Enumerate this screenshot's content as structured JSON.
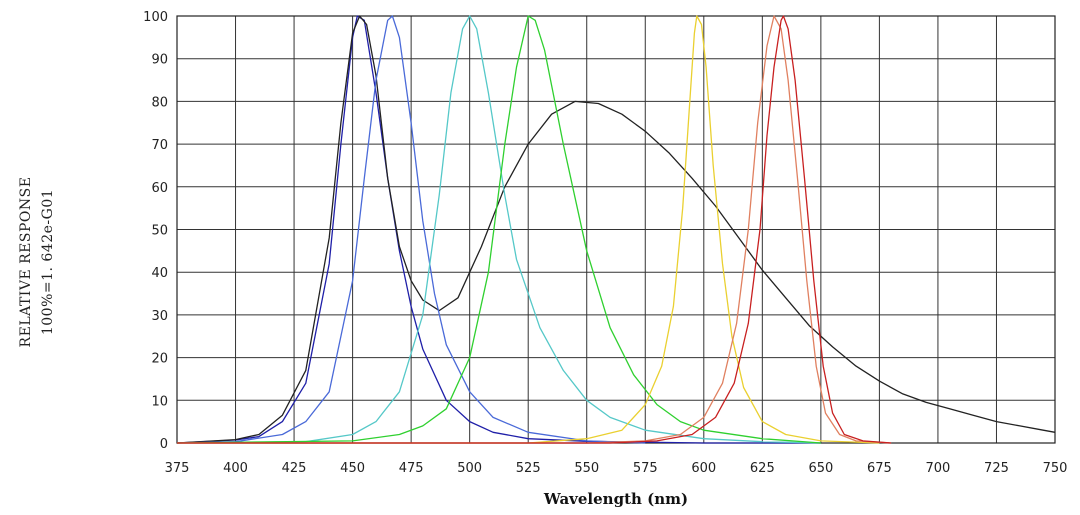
{
  "chart_data": {
    "type": "line",
    "title": "",
    "xlabel": "Wavelength (nm)",
    "ylabel_lines": [
      "RELATIVE RESPONSE",
      "100%=1. 642e-G01"
    ],
    "xlim": [
      375,
      750
    ],
    "ylim": [
      0,
      100
    ],
    "xticks": [
      375,
      400,
      425,
      450,
      475,
      500,
      525,
      550,
      575,
      600,
      625,
      650,
      675,
      700,
      725,
      750
    ],
    "yticks": [
      0,
      10,
      20,
      30,
      40,
      50,
      60,
      70,
      80,
      90,
      100
    ],
    "grid": true,
    "series": [
      {
        "color": "#1f1fa8",
        "points": [
          [
            375,
            0
          ],
          [
            400,
            0.7
          ],
          [
            410,
            1.5
          ],
          [
            420,
            5
          ],
          [
            430,
            14
          ],
          [
            440,
            42
          ],
          [
            445,
            70
          ],
          [
            450,
            95
          ],
          [
            452,
            100
          ],
          [
            455,
            99
          ],
          [
            460,
            82
          ],
          [
            465,
            62
          ],
          [
            470,
            45
          ],
          [
            475,
            32
          ],
          [
            480,
            22
          ],
          [
            490,
            10
          ],
          [
            500,
            5
          ],
          [
            510,
            2.5
          ],
          [
            525,
            1
          ],
          [
            550,
            0.4
          ],
          [
            600,
            0
          ],
          [
            650,
            0
          ]
        ]
      },
      {
        "color": "#222222",
        "points": [
          [
            375,
            0
          ],
          [
            400,
            0.8
          ],
          [
            410,
            2
          ],
          [
            420,
            6.5
          ],
          [
            430,
            17
          ],
          [
            440,
            48
          ],
          [
            445,
            75
          ],
          [
            450,
            96
          ],
          [
            453,
            100
          ],
          [
            456,
            98
          ],
          [
            460,
            86
          ],
          [
            465,
            62
          ],
          [
            470,
            46
          ],
          [
            475,
            38
          ],
          [
            480,
            33.5
          ],
          [
            487,
            31
          ],
          [
            495,
            34
          ],
          [
            505,
            46
          ],
          [
            515,
            60
          ],
          [
            525,
            70
          ],
          [
            535,
            77
          ],
          [
            545,
            80
          ],
          [
            555,
            79.5
          ],
          [
            565,
            77
          ],
          [
            575,
            73
          ],
          [
            585,
            68
          ],
          [
            595,
            62
          ],
          [
            605,
            55.5
          ],
          [
            615,
            48
          ],
          [
            625,
            40.5
          ],
          [
            635,
            34
          ],
          [
            645,
            27.5
          ],
          [
            655,
            22.5
          ],
          [
            665,
            18
          ],
          [
            675,
            14.5
          ],
          [
            685,
            11.5
          ],
          [
            695,
            9.5
          ],
          [
            705,
            8
          ],
          [
            715,
            6.5
          ],
          [
            725,
            5
          ],
          [
            735,
            4
          ],
          [
            745,
            3
          ],
          [
            750,
            2.5
          ]
        ]
      },
      {
        "color": "#4a6ad8",
        "points": [
          [
            375,
            0
          ],
          [
            400,
            0.3
          ],
          [
            420,
            2
          ],
          [
            430,
            5
          ],
          [
            440,
            12
          ],
          [
            450,
            38
          ],
          [
            455,
            62
          ],
          [
            460,
            85
          ],
          [
            465,
            99
          ],
          [
            467,
            100
          ],
          [
            470,
            95
          ],
          [
            475,
            75
          ],
          [
            480,
            52
          ],
          [
            485,
            35
          ],
          [
            490,
            23
          ],
          [
            500,
            12
          ],
          [
            510,
            6
          ],
          [
            525,
            2.5
          ],
          [
            550,
            0.5
          ],
          [
            575,
            0
          ]
        ]
      },
      {
        "color": "#55c8c8",
        "points": [
          [
            375,
            0
          ],
          [
            430,
            0.3
          ],
          [
            450,
            2
          ],
          [
            460,
            5
          ],
          [
            470,
            12
          ],
          [
            480,
            30
          ],
          [
            487,
            58
          ],
          [
            492,
            82
          ],
          [
            497,
            97
          ],
          [
            500,
            100
          ],
          [
            503,
            97
          ],
          [
            508,
            82
          ],
          [
            515,
            58
          ],
          [
            520,
            43
          ],
          [
            530,
            27
          ],
          [
            540,
            17
          ],
          [
            550,
            10
          ],
          [
            560,
            6
          ],
          [
            575,
            3
          ],
          [
            600,
            1
          ],
          [
            625,
            0.3
          ],
          [
            650,
            0
          ]
        ]
      },
      {
        "color": "#2fd02f",
        "points": [
          [
            375,
            0
          ],
          [
            450,
            0.5
          ],
          [
            470,
            2
          ],
          [
            480,
            4
          ],
          [
            490,
            8
          ],
          [
            500,
            20
          ],
          [
            508,
            40
          ],
          [
            515,
            70
          ],
          [
            520,
            88
          ],
          [
            525,
            100
          ],
          [
            528,
            99
          ],
          [
            532,
            92
          ],
          [
            540,
            70
          ],
          [
            550,
            45
          ],
          [
            560,
            27
          ],
          [
            570,
            16
          ],
          [
            580,
            9
          ],
          [
            590,
            5
          ],
          [
            600,
            3
          ],
          [
            625,
            1
          ],
          [
            650,
            0
          ]
        ]
      },
      {
        "color": "#ead030",
        "points": [
          [
            375,
            0
          ],
          [
            525,
            0
          ],
          [
            550,
            1
          ],
          [
            565,
            3
          ],
          [
            575,
            9
          ],
          [
            582,
            18
          ],
          [
            587,
            32
          ],
          [
            591,
            55
          ],
          [
            594,
            80
          ],
          [
            596,
            96
          ],
          [
            597,
            100
          ],
          [
            599,
            98
          ],
          [
            601,
            88
          ],
          [
            604,
            65
          ],
          [
            608,
            42
          ],
          [
            612,
            25
          ],
          [
            617,
            13
          ],
          [
            625,
            5
          ],
          [
            635,
            2
          ],
          [
            650,
            0.5
          ],
          [
            675,
            0
          ]
        ]
      },
      {
        "color": "#e08060",
        "points": [
          [
            375,
            0
          ],
          [
            550,
            0
          ],
          [
            575,
            0.5
          ],
          [
            590,
            2
          ],
          [
            600,
            6
          ],
          [
            608,
            14
          ],
          [
            614,
            28
          ],
          [
            619,
            50
          ],
          [
            623,
            75
          ],
          [
            627,
            93
          ],
          [
            630,
            100
          ],
          [
            633,
            97
          ],
          [
            636,
            85
          ],
          [
            640,
            62
          ],
          [
            644,
            38
          ],
          [
            648,
            18
          ],
          [
            652,
            7
          ],
          [
            658,
            2
          ],
          [
            665,
            0.5
          ],
          [
            680,
            0
          ]
        ]
      },
      {
        "color": "#c82020",
        "points": [
          [
            375,
            0
          ],
          [
            560,
            0
          ],
          [
            580,
            0.5
          ],
          [
            595,
            2
          ],
          [
            605,
            6
          ],
          [
            613,
            14
          ],
          [
            619,
            28
          ],
          [
            624,
            50
          ],
          [
            627,
            72
          ],
          [
            630,
            88
          ],
          [
            633,
            99
          ],
          [
            634,
            100
          ],
          [
            636,
            97
          ],
          [
            639,
            85
          ],
          [
            643,
            62
          ],
          [
            647,
            38
          ],
          [
            651,
            18
          ],
          [
            655,
            7
          ],
          [
            660,
            2
          ],
          [
            668,
            0.5
          ],
          [
            680,
            0
          ]
        ]
      }
    ]
  }
}
